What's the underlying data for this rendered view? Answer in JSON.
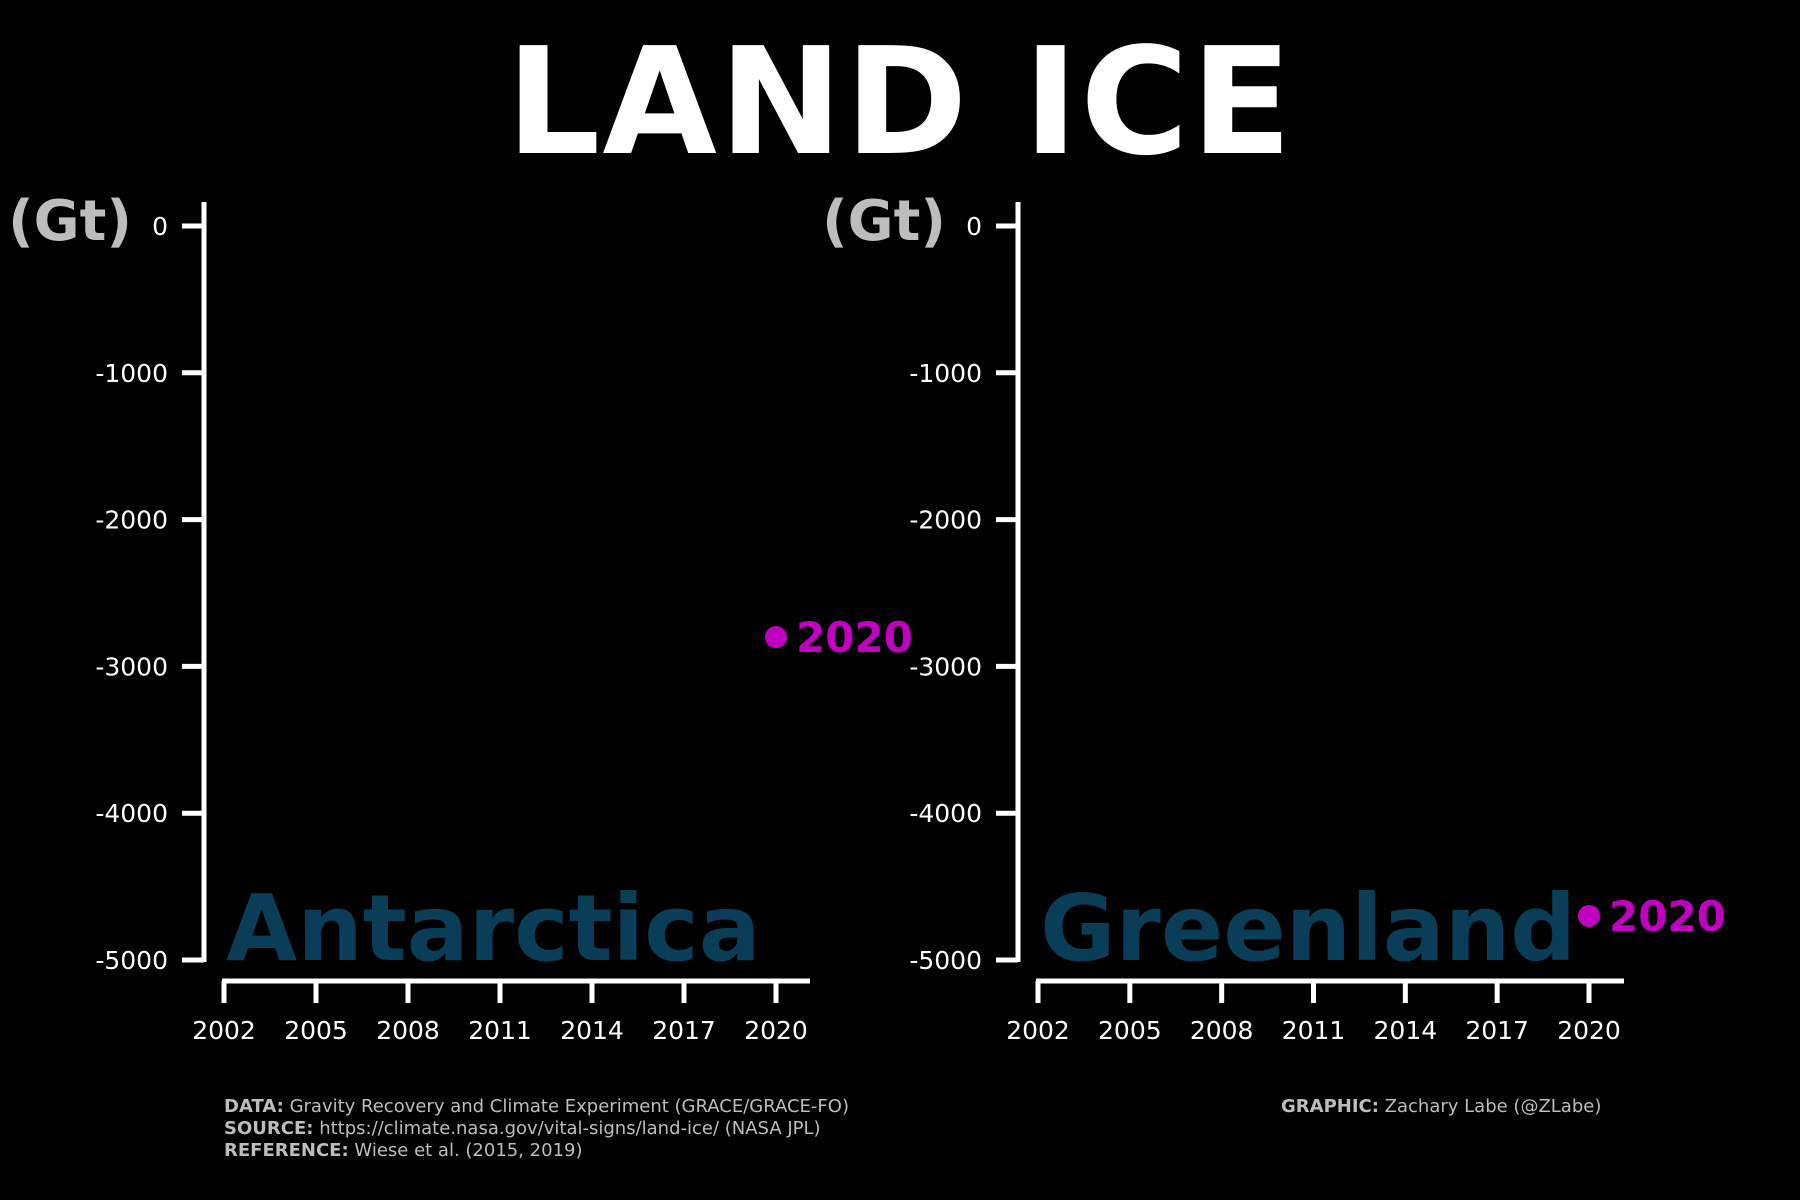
{
  "title": "LAND ICE",
  "colors": {
    "background": "#000000",
    "axis": "#ffffff",
    "unit": "#bdbdbd",
    "region_label": "#0a3d57",
    "highlight": "#c200c2",
    "credits": "#bdbdbd"
  },
  "chart_data": [
    {
      "type": "scatter",
      "region": "Antarctica",
      "ylabel": "(Gt)",
      "xlim": [
        2002,
        2020
      ],
      "ylim": [
        -5000,
        0
      ],
      "xticks": [
        "2002",
        "2005",
        "2008",
        "2011",
        "2014",
        "2017",
        "2020"
      ],
      "yticks": [
        "0",
        "-1000",
        "-2000",
        "-3000",
        "-4000",
        "-5000"
      ],
      "points": [
        {
          "x": 2020,
          "y": -2800,
          "label": "2020"
        }
      ],
      "grid": false
    },
    {
      "type": "scatter",
      "region": "Greenland",
      "ylabel": "(Gt)",
      "xlim": [
        2002,
        2020
      ],
      "ylim": [
        -5000,
        0
      ],
      "xticks": [
        "2002",
        "2005",
        "2008",
        "2011",
        "2014",
        "2017",
        "2020"
      ],
      "yticks": [
        "0",
        "-1000",
        "-2000",
        "-3000",
        "-4000",
        "-5000"
      ],
      "points": [
        {
          "x": 2020,
          "y": -4700,
          "label": "2020"
        }
      ],
      "grid": false
    }
  ],
  "credits": {
    "data_label": "DATA:",
    "data_text": "Gravity Recovery and Climate Experiment (GRACE/GRACE-FO)",
    "source_label": "SOURCE:",
    "source_text": "https://climate.nasa.gov/vital-signs/land-ice/ (NASA JPL)",
    "reference_label": "REFERENCE:",
    "reference_text": "Wiese et al. (2015, 2019)",
    "graphic_label": "GRAPHIC:",
    "graphic_text": "Zachary Labe (@ZLabe)"
  }
}
